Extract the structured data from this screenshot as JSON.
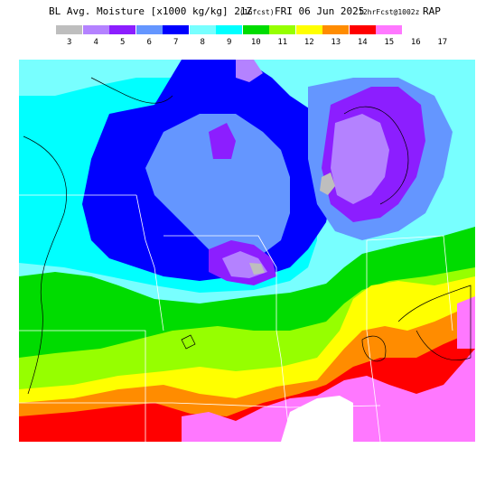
{
  "header": {
    "title_main": "BL Avg. Moisture [x1000 kg/kg] 21Z",
    "title_fcst": "(16fcst)",
    "title_date": "FRI 06 Jun 2025",
    "title_run": "12hrFcst@1002z",
    "title_model": "RAP"
  },
  "legend": {
    "bins": [
      {
        "label": "3",
        "color": "#bebebe"
      },
      {
        "label": "4",
        "color": "#b482ff"
      },
      {
        "label": "5",
        "color": "#8c1eff"
      },
      {
        "label": "6",
        "color": "#6496ff"
      },
      {
        "label": "7",
        "color": "#0000ff"
      },
      {
        "label": "8",
        "color": "#78ffff"
      },
      {
        "label": "9",
        "color": "#00ffff"
      },
      {
        "label": "10",
        "color": "#00dc00"
      },
      {
        "label": "11",
        "color": "#96ff00"
      },
      {
        "label": "12",
        "color": "#ffff00"
      },
      {
        "label": "13",
        "color": "#ff8c00"
      },
      {
        "label": "14",
        "color": "#ff0000"
      },
      {
        "label": "15",
        "color": "#ff78ff"
      }
    ],
    "last_labels": [
      "16",
      "17"
    ]
  }
}
